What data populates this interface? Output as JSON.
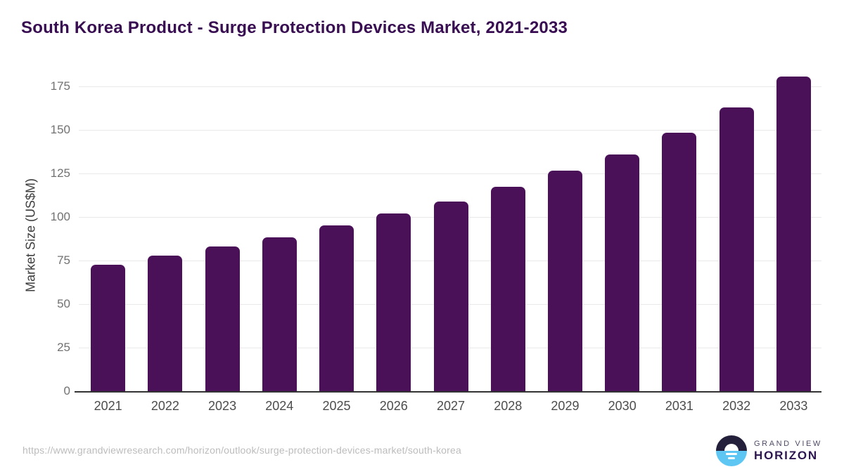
{
  "header": {
    "title": "South Korea Product - Surge Protection Devices Market, 2021-2033"
  },
  "chart_data": {
    "type": "bar",
    "title": "South Korea Product - Surge Protection Devices Market, 2021-2033",
    "categories": [
      "2021",
      "2022",
      "2023",
      "2024",
      "2025",
      "2026",
      "2027",
      "2028",
      "2029",
      "2030",
      "2031",
      "2032",
      "2033"
    ],
    "values": [
      72.5,
      78,
      83,
      88.5,
      95,
      102,
      109,
      117.5,
      126.5,
      136,
      148.5,
      163,
      180.5
    ],
    "xlabel": "",
    "ylabel": "Market Size (US$M)",
    "ylim": [
      0,
      187
    ],
    "yticks": [
      0,
      25,
      50,
      75,
      100,
      125,
      150,
      175
    ],
    "grid": true,
    "legend": "none",
    "bar_color": "#4a1159"
  },
  "footer": {
    "source_url": "https://www.grandviewresearch.com/horizon/outlook/surge-protection-devices-market/south-korea",
    "logo": {
      "line1": "GRAND VIEW",
      "line2": "HORIZON"
    }
  },
  "colors": {
    "title": "#380d52",
    "bar": "#4a1159",
    "gridline": "#e9e9e9",
    "axis_line": "#333333",
    "y_tick_label": "#717171",
    "x_tick_label": "#4c4c4c",
    "url_text": "#bcbcbc",
    "logo_dark": "#241f3a",
    "logo_blue": "#5ec6f2"
  }
}
